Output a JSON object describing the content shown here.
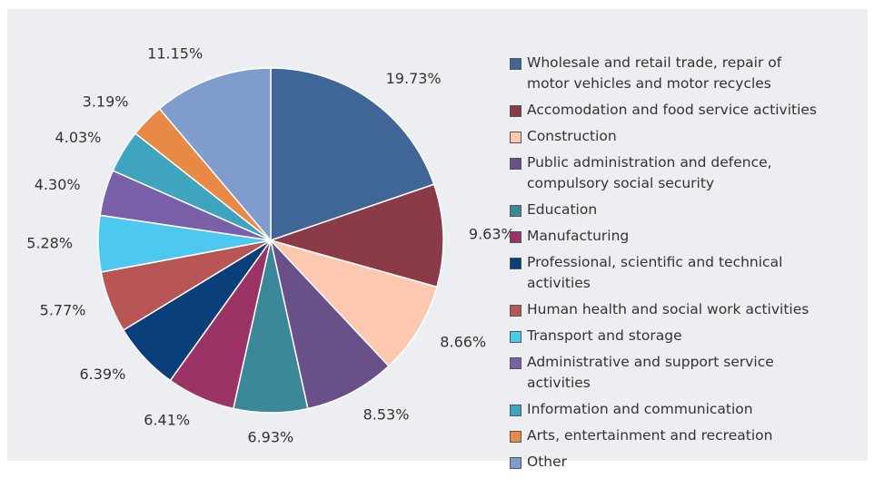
{
  "chart_data": {
    "type": "pie",
    "categories": [
      "Wholesale and retail trade, repair of motor vehicles and motor recycles",
      "Accomodation and food service activities",
      "Construction",
      "Public administration and defence, compulsory social security",
      "Education",
      "Manufacturing",
      "Professional, scientific and technical activities",
      "Human health and social work activities",
      "Transport and storage",
      "Administrative and support service activities",
      "Information and communication",
      "Arts, entertainment and recreation",
      "Other"
    ],
    "values": [
      19.73,
      9.63,
      8.66,
      8.53,
      6.93,
      6.41,
      6.39,
      5.77,
      5.28,
      4.3,
      4.03,
      3.19,
      11.15
    ],
    "value_labels": [
      "19.73%",
      "9.63%",
      "8.66%",
      "8.53%",
      "6.93%",
      "6.41%",
      "6.39%",
      "5.77%",
      "5.28%",
      "4.30%",
      "4.03%",
      "3.19%",
      "11.15%"
    ],
    "colors": [
      "#3f6697",
      "#8b3a48",
      "#fcc8b0",
      "#6a5088",
      "#3a8899",
      "#9b3366",
      "#0a3f7a",
      "#b85555",
      "#4dc8f0",
      "#7a60a8",
      "#3fa5bf",
      "#e88a45",
      "#7f9ccc"
    ],
    "legend": "right"
  }
}
